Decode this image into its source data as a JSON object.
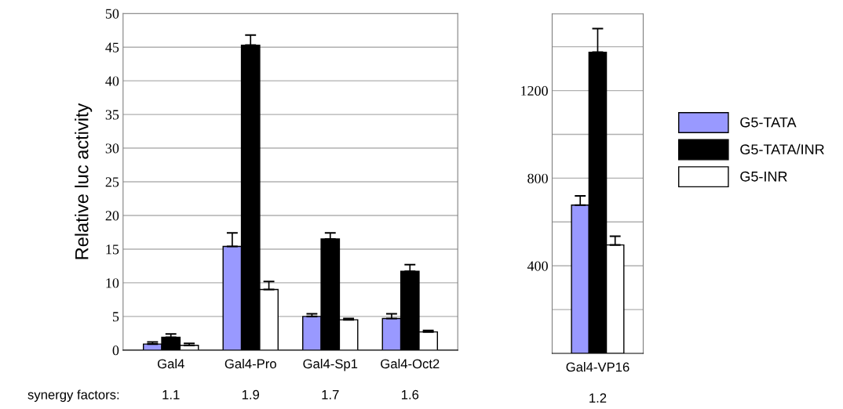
{
  "chart_data": [
    {
      "type": "bar",
      "ylabel": "Relative luc activity",
      "categories": [
        "Gal4",
        "Gal4-Pro",
        "Gal4-Sp1",
        "Gal4-Oct2"
      ],
      "series": [
        {
          "color": "#9999ff",
          "values": [
            0.9,
            15.4,
            5.0,
            4.7
          ],
          "errors": [
            [
              0.9,
              1.2
            ],
            [
              15.4,
              17.4
            ],
            [
              5.0,
              5.4
            ],
            [
              4.7,
              5.4
            ]
          ]
        },
        {
          "color": "#000000",
          "values": [
            1.9,
            45.3,
            16.5,
            11.7
          ],
          "errors": [
            [
              1.9,
              2.4
            ],
            [
              45.3,
              46.8
            ],
            [
              16.5,
              17.4
            ],
            [
              11.7,
              12.7
            ]
          ]
        },
        {
          "color": "#ffffff",
          "values": [
            0.7,
            9.0,
            4.5,
            2.7
          ],
          "errors": [
            [
              0.7,
              1.0
            ],
            [
              9.0,
              10.2
            ],
            [
              4.5,
              4.7
            ],
            [
              2.7,
              2.9
            ]
          ]
        }
      ],
      "ylim": [
        0,
        50
      ],
      "yticks": [
        0,
        5,
        10,
        15,
        20,
        25,
        30,
        35,
        40,
        45,
        50
      ],
      "grid": "y",
      "annotations": [
        "synergy factors:",
        "1.1",
        "1.9",
        "1.7",
        "1.6"
      ]
    },
    {
      "type": "bar",
      "categories": [
        "Gal4-VP16"
      ],
      "series": [
        {
          "name": "G5-TATA",
          "color": "#9999ff",
          "values": [
            677
          ],
          "errors": [
            [
              677,
              719
            ]
          ]
        },
        {
          "name": "G5-TATA/INR",
          "color": "#000000",
          "values": [
            1375
          ],
          "errors": [
            [
              1375,
              1483
            ]
          ]
        },
        {
          "name": "G5-INR",
          "color": "#ffffff",
          "values": [
            495
          ],
          "errors": [
            [
              495,
              535
            ]
          ]
        }
      ],
      "ylim": [
        0,
        1550
      ],
      "yticks": [
        {
          "value": 200,
          "label": null
        },
        400,
        {
          "value": 600,
          "label": null
        },
        800,
        {
          "value": 1000,
          "label": null
        },
        1200,
        {
          "value": 1400,
          "label": null
        }
      ],
      "grid": "y",
      "legend": "right",
      "annotations": [
        "1.2"
      ]
    }
  ]
}
